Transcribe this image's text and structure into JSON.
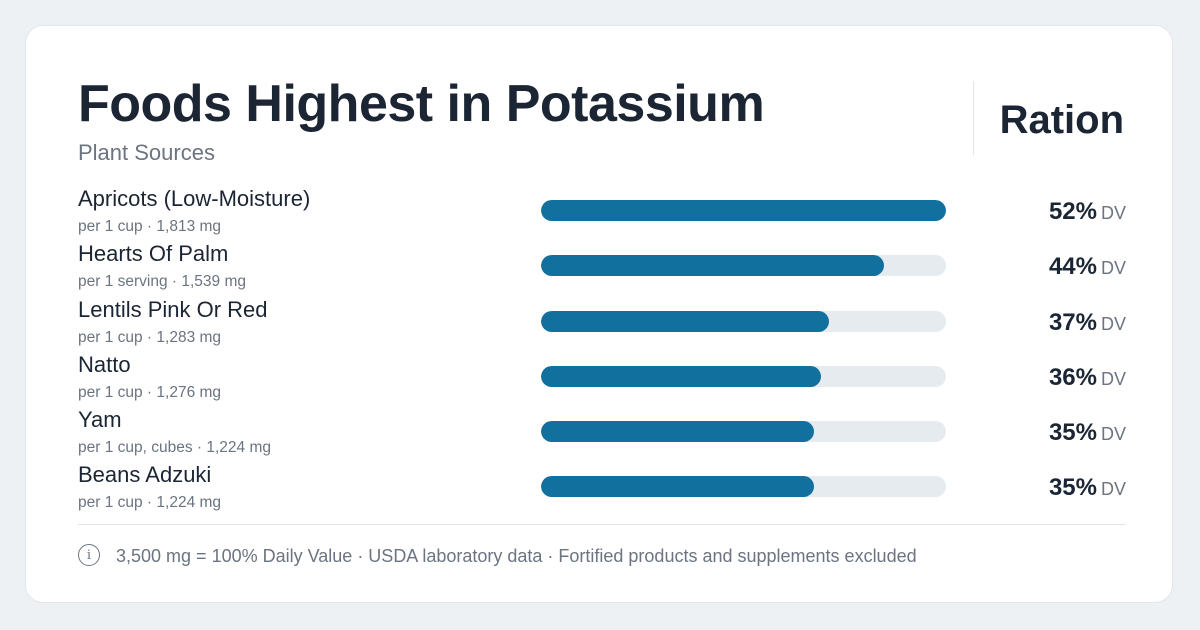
{
  "header": {
    "title": "Foods Highest in Potassium",
    "subtitle": "Plant Sources",
    "brand": "Ration"
  },
  "footer": {
    "icon": "info-icon",
    "note": "3,500 mg = 100% Daily Value · USDA laboratory data · Fortified products and supplements excluded"
  },
  "colors": {
    "bar_fill": "#12709e",
    "bar_track": "#e6ebf0"
  },
  "chart_data": {
    "type": "bar",
    "orientation": "horizontal",
    "title": "Foods Highest in Potassium",
    "subtitle": "Plant Sources",
    "unit_label": "DV",
    "xlim": [
      0,
      52
    ],
    "grid": false,
    "categories": [
      "Apricots (Low-Moisture)",
      "Hearts Of Palm",
      "Lentils Pink Or Red",
      "Natto",
      "Yam",
      "Beans Adzuki"
    ],
    "items": [
      {
        "name": "Apricots (Low-Moisture)",
        "serving": "per 1 cup · 1,813 mg",
        "dv_percent": 52,
        "label": "52%"
      },
      {
        "name": "Hearts Of Palm",
        "serving": "per 1 serving · 1,539 mg",
        "dv_percent": 44,
        "label": "44%"
      },
      {
        "name": "Lentils Pink Or Red",
        "serving": "per 1 cup · 1,283 mg",
        "dv_percent": 37,
        "label": "37%"
      },
      {
        "name": "Natto",
        "serving": "per 1 cup · 1,276 mg",
        "dv_percent": 36,
        "label": "36%"
      },
      {
        "name": "Yam",
        "serving": "per 1 cup, cubes · 1,224 mg",
        "dv_percent": 35,
        "label": "35%"
      },
      {
        "name": "Beans Adzuki",
        "serving": "per 1 cup · 1,224 mg",
        "dv_percent": 35,
        "label": "35%"
      }
    ]
  }
}
